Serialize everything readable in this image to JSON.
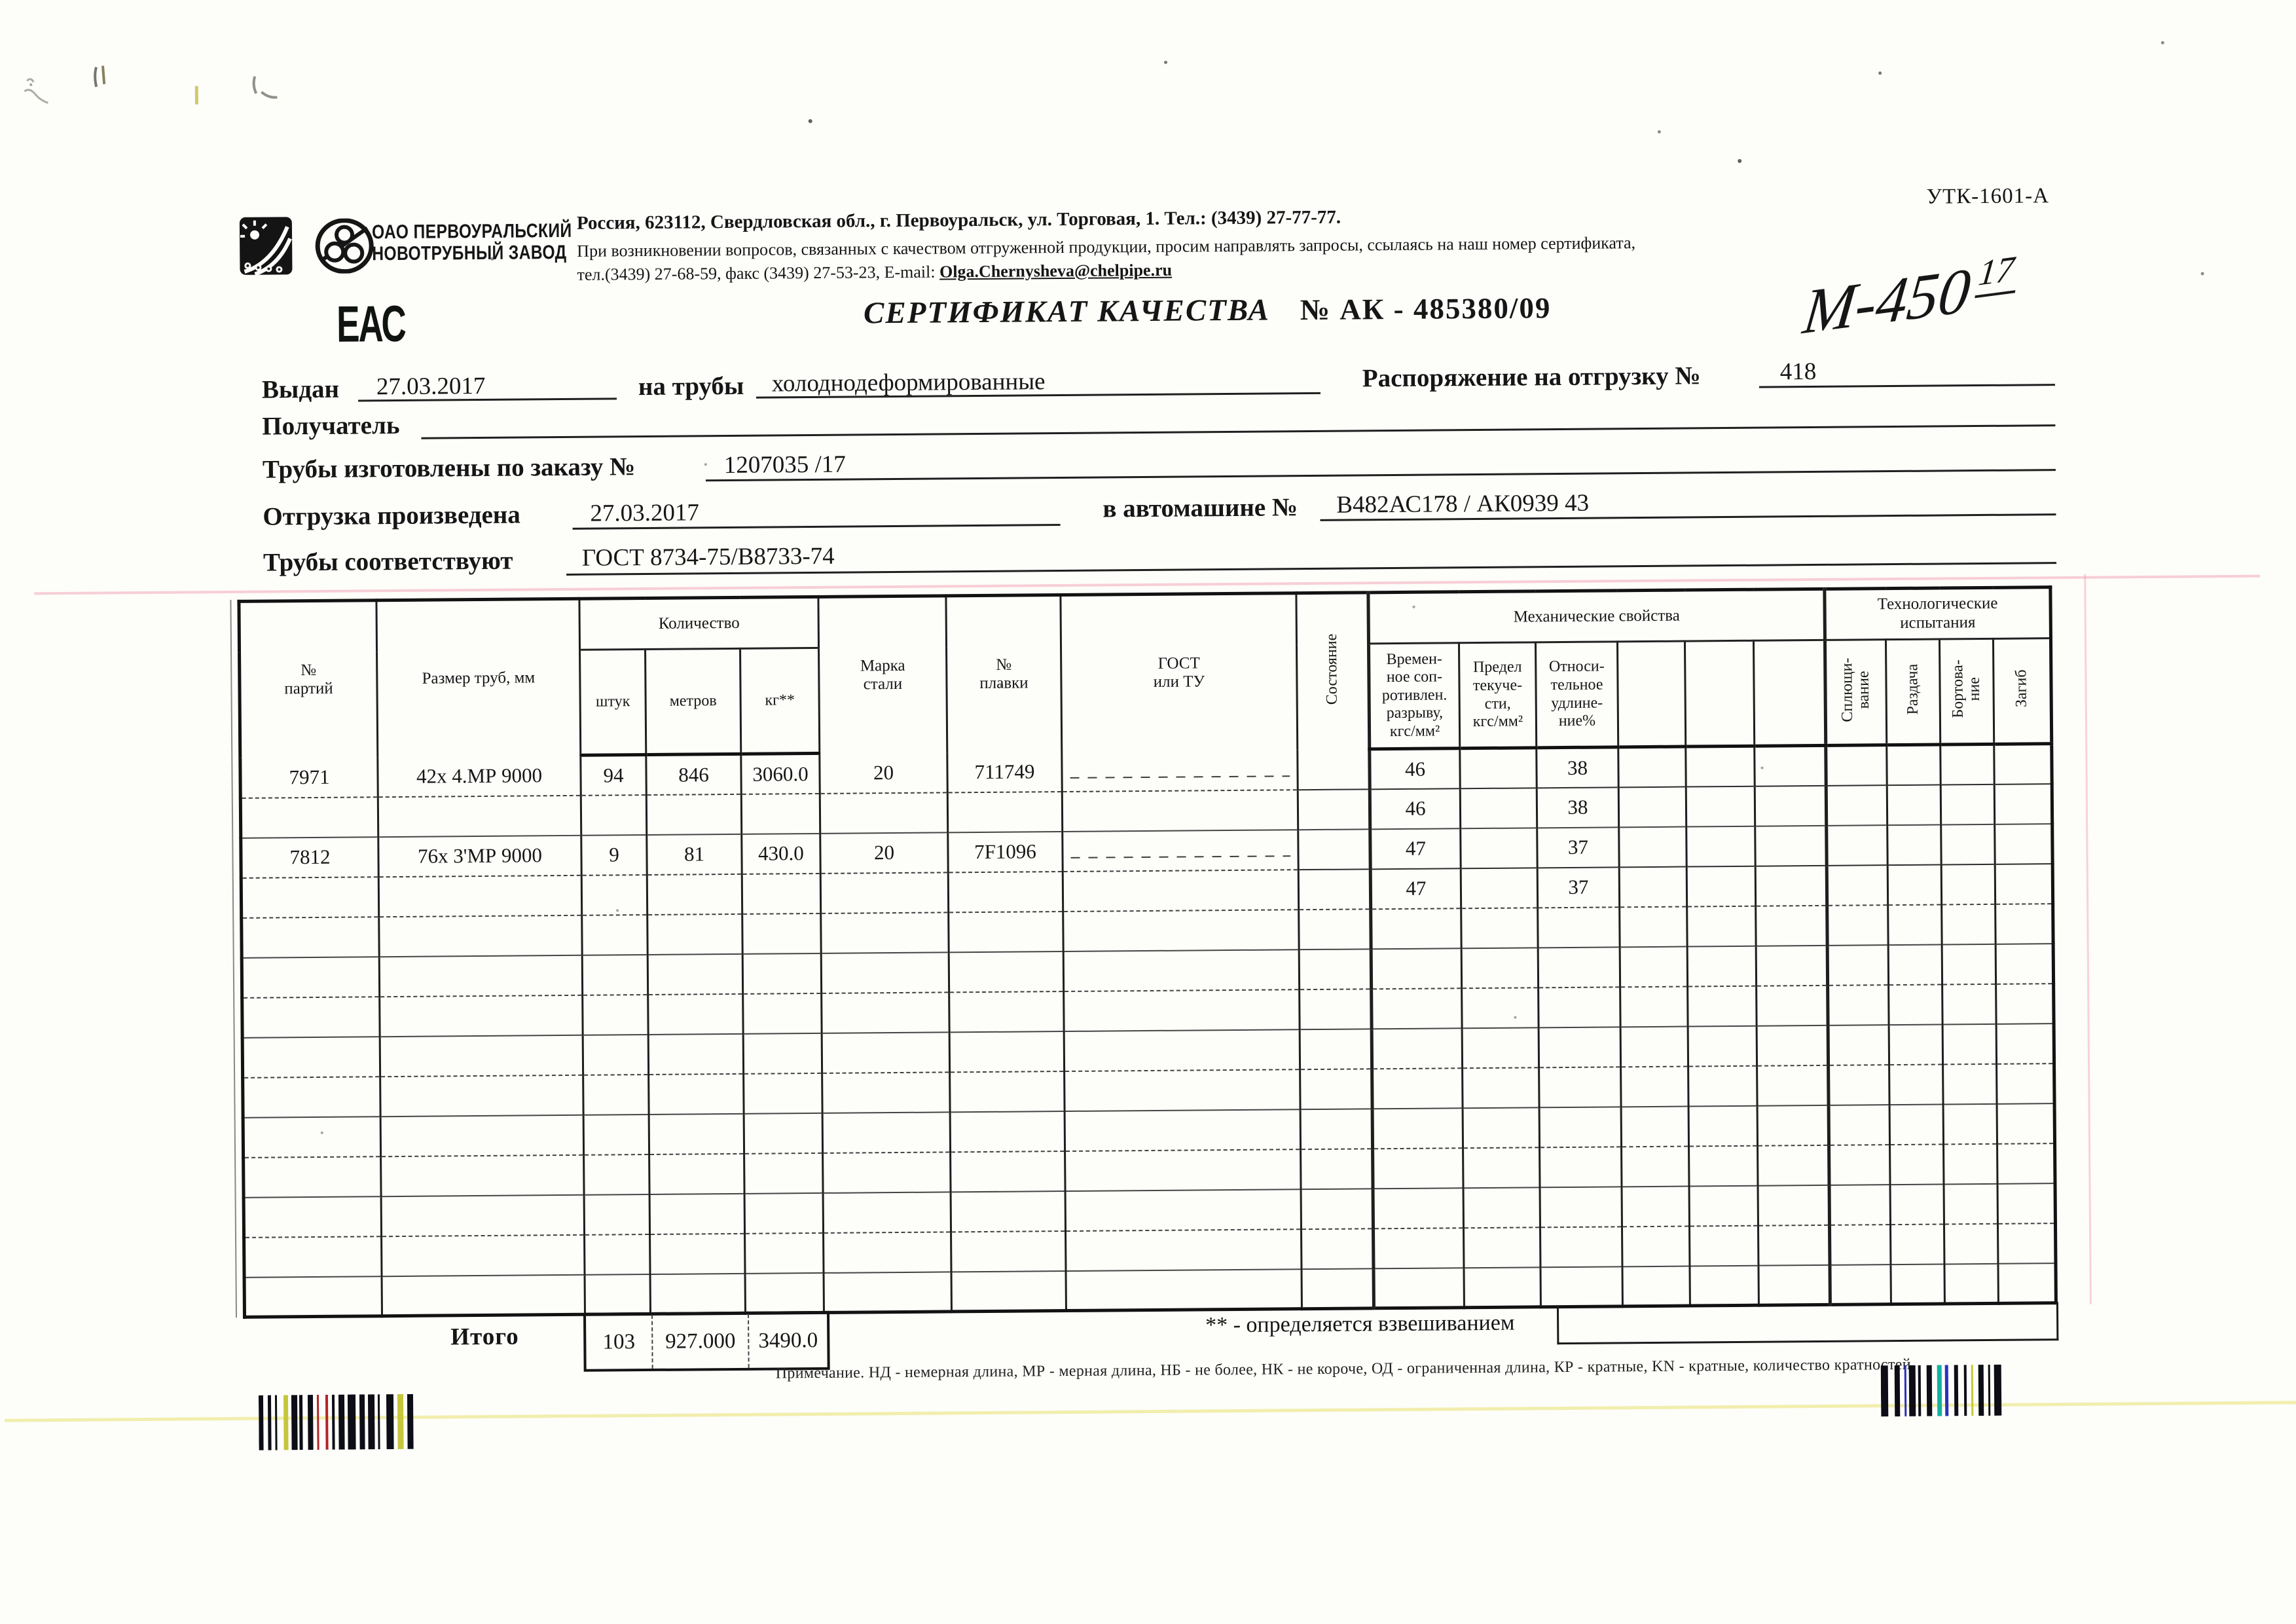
{
  "page": {
    "form_code": "УТК-1601-А",
    "handwritten_number": "М-450",
    "handwritten_superscript": "17"
  },
  "company": {
    "name_line1": "ОАО ПЕРВОУРАЛЬСКИЙ",
    "name_line2": "НОВОТРУБНЫЙ ЗАВОД",
    "eac_mark": "ЕАС",
    "address_line": "Россия, 623112, Свердловская обл., г. Первоуральск, ул. Торговая, 1. Тел.: (3439) 27-77-77.",
    "note_line": "При возникновении вопросов, связанных с качеством отгруженной продукции, просим направлять запросы, ссылаясь на наш номер сертификата,",
    "contact_prefix": "тел.(3439) 27-68-59, факс (3439) 27-53-23,  E-mail: ",
    "email": "Olga.Chernysheva@chelpipe.ru"
  },
  "title": {
    "label": "СЕРТИФИКАТ КАЧЕСТВА",
    "number": "№  АК -  485380/09"
  },
  "fields": {
    "issued_label": "Выдан",
    "issued_value": "27.03.2017",
    "pipes_label": "на трубы",
    "pipes_value": "холоднодеформированные",
    "order_ship_label": "Распоряжение на отгрузку №",
    "order_ship_value": "418",
    "receiver_label": "Получатель",
    "made_by_order_label": "Трубы изготовлены по заказу №",
    "made_by_order_value": "1207035  /17",
    "shipped_label": "Отгрузка произведена",
    "shipped_value": "27.03.2017",
    "truck_label": "в автомашине №",
    "truck_value": "В482АС178 / АК0939 43",
    "conform_label": "Трубы соответствуют",
    "conform_value": "ГОСТ 8734-75/В8733-74"
  },
  "table": {
    "headers": {
      "batch": "№\nпартий",
      "size": "Размер труб, мм",
      "qty_group": "Количество",
      "qty_pcs": "штук",
      "qty_m": "метров",
      "qty_kg": "кг**",
      "steel": "Марка\nстали",
      "heat": "№\nплавки",
      "gost": "ГОСТ\nили ТУ",
      "state": "Состояние",
      "mech_group": "Механические свойства",
      "mech_tensile": "Времен-\nное соп-\nротивлен.\nразрыву,\nкгс/мм²",
      "mech_yield": "Предел\nтекуче-\nсти,\nкгс/мм²",
      "mech_elong": "Относи-\nтельное\nудлине-\nние%",
      "tech_group": "Технологические\nиспытания",
      "tech_flatten": "Сплющи-\nвание",
      "tech_expand": "Раздача",
      "tech_flange": "Бортова-\nние",
      "tech_bend": "Загиб"
    },
    "body": [
      [
        "7971",
        "42х 4.МР 9000",
        "94",
        "846",
        "3060.0",
        "20",
        "711749",
        "",
        "",
        "46",
        "",
        "38",
        "",
        "",
        "",
        "",
        "",
        "",
        ""
      ],
      [
        "",
        "",
        "",
        "",
        "",
        "",
        "",
        "",
        "",
        "46",
        "",
        "38",
        "",
        "",
        "",
        "",
        "",
        "",
        ""
      ],
      [
        "7812",
        "76х 3'МР 9000",
        "9",
        "81",
        "430.0",
        "20",
        "7F1096",
        "",
        "",
        "47",
        "",
        "37",
        "",
        "",
        "",
        "",
        "",
        "",
        ""
      ],
      [
        "",
        "",
        "",
        "",
        "",
        "",
        "",
        "",
        "",
        "47",
        "",
        "37",
        "",
        "",
        "",
        "",
        "",
        "",
        ""
      ],
      [
        "",
        "",
        "",
        "",
        "",
        "",
        "",
        "",
        "",
        "",
        "",
        "",
        "",
        "",
        "",
        "",
        "",
        "",
        ""
      ],
      [
        "",
        "",
        "",
        "",
        "",
        "",
        "",
        "",
        "",
        "",
        "",
        "",
        "",
        "",
        "",
        "",
        "",
        "",
        ""
      ],
      [
        "",
        "",
        "",
        "",
        "",
        "",
        "",
        "",
        "",
        "",
        "",
        "",
        "",
        "",
        "",
        "",
        "",
        "",
        ""
      ],
      [
        "",
        "",
        "",
        "",
        "",
        "",
        "",
        "",
        "",
        "",
        "",
        "",
        "",
        "",
        "",
        "",
        "",
        "",
        ""
      ],
      [
        "",
        "",
        "",
        "",
        "",
        "",
        "",
        "",
        "",
        "",
        "",
        "",
        "",
        "",
        "",
        "",
        "",
        "",
        ""
      ],
      [
        "",
        "",
        "",
        "",
        "",
        "",
        "",
        "",
        "",
        "",
        "",
        "",
        "",
        "",
        "",
        "",
        "",
        "",
        ""
      ],
      [
        "",
        "",
        "",
        "",
        "",
        "",
        "",
        "",
        "",
        "",
        "",
        "",
        "",
        "",
        "",
        "",
        "",
        "",
        ""
      ],
      [
        "",
        "",
        "",
        "",
        "",
        "",
        "",
        "",
        "",
        "",
        "",
        "",
        "",
        "",
        "",
        "",
        "",
        "",
        ""
      ],
      [
        "",
        "",
        "",
        "",
        "",
        "",
        "",
        "",
        "",
        "",
        "",
        "",
        "",
        "",
        "",
        "",
        "",
        "",
        ""
      ],
      [
        "",
        "",
        "",
        "",
        "",
        "",
        "",
        "",
        "",
        "",
        "",
        "",
        "",
        "",
        "",
        "",
        "",
        "",
        ""
      ]
    ],
    "totals_label": "Итого",
    "totals": [
      "103",
      "927.000",
      "3490.0"
    ],
    "footnote": "** - определяется взвешиванием",
    "note": "Примечание. НД - немерная длина, МР - мерная длина, НБ - не более, НК - не короче, ОД - ограниченная длина, КР - кратные, KN - кратные, количество кратностей"
  }
}
